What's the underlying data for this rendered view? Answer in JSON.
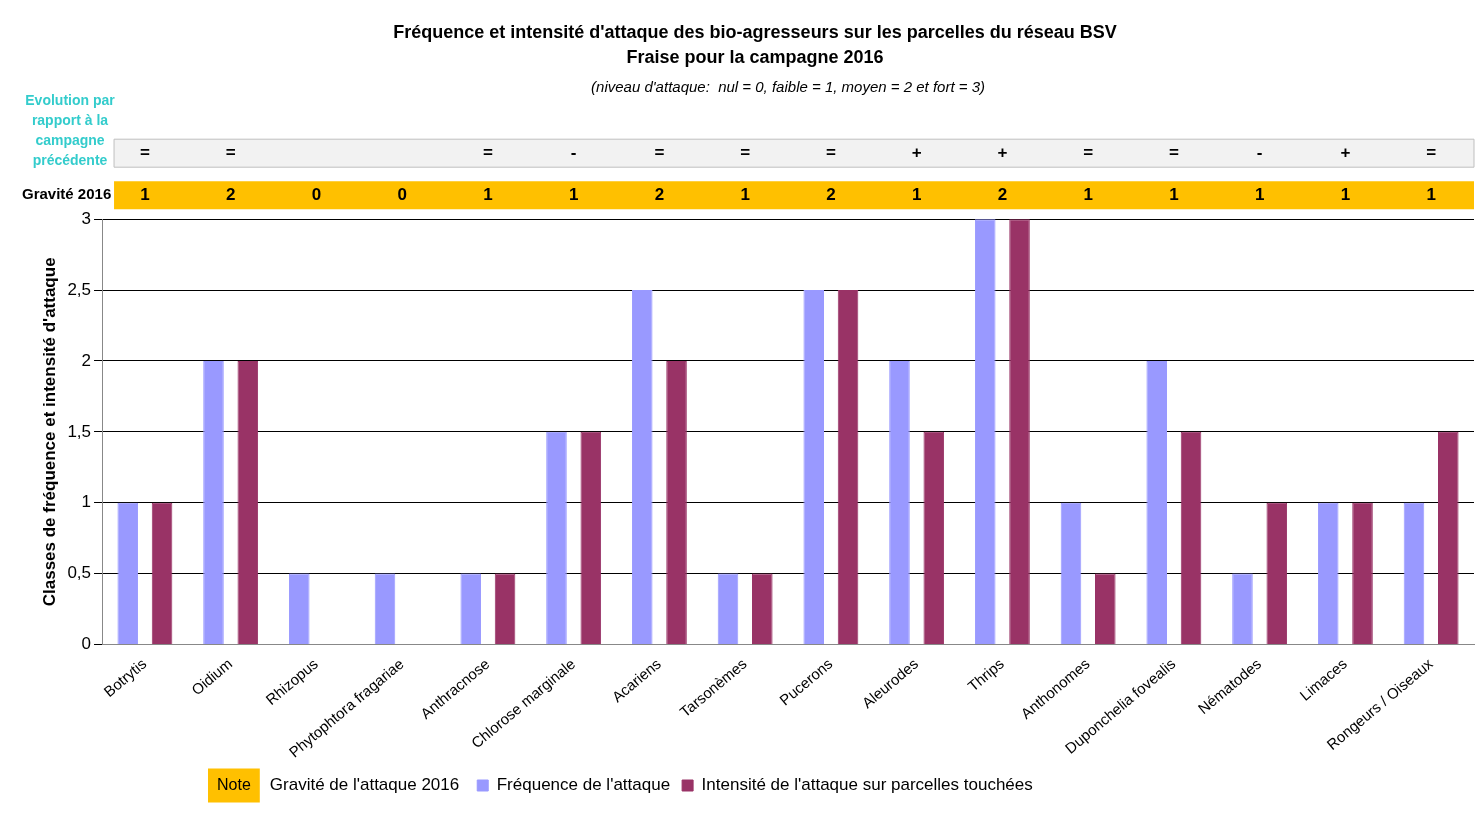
{
  "chart_data": {
    "type": "bar",
    "title": "Fréquence et intensité d'attaque des bio-agresseurs sur les parcelles du réseau BSV",
    "subtitle": "Fraise pour la campagne 2016",
    "ylabel": "Classes de fréquence et intensité d'attaque",
    "categories": [
      "Botrytis",
      "Oidium",
      "Rhizopus",
      "Phytophtora fragariae",
      "Anthracnose",
      "Chlorose marginale",
      "Acariens",
      "Tarsonèmes",
      "Pucerons",
      "Aleurodes",
      "Thrips",
      "Anthonomes",
      "Duponchelia fovealis",
      "Nématodes",
      "Limaces",
      "Rongeurs / Oiseaux"
    ],
    "series": [
      {
        "name": "Fréquence de l'attaque",
        "color": "#9999ff",
        "values": [
          1,
          2,
          0.5,
          0.5,
          0.5,
          1.5,
          2.5,
          0.5,
          2.5,
          2,
          3,
          1,
          2,
          0.5,
          1,
          1
        ]
      },
      {
        "name": "Intensité de l'attaque sur parcelles touchées",
        "color": "#993366",
        "values": [
          1,
          2,
          0,
          0,
          0.5,
          1.5,
          2,
          0.5,
          2.5,
          1.5,
          3,
          0.5,
          1.5,
          1,
          1,
          1.5
        ]
      }
    ],
    "ylim": [
      0,
      3
    ],
    "yticks": [
      0,
      {
        "value": 0.5,
        "label": "0,5"
      },
      1,
      {
        "value": 1.5,
        "label": "1,5"
      },
      2,
      {
        "value": 2.5,
        "label": "2,5"
      },
      3
    ],
    "grid": "y",
    "legend": "bottom",
    "annotations": [
      "(niveau d'attaque:  nul = 0, faible = 1, moyen = 2 et fort = 3)",
      "Evolution par rapport à la campagne précédente",
      "=",
      "=",
      null,
      null,
      "=",
      "-",
      "=",
      "=",
      "=",
      "+",
      "+",
      "=",
      "=",
      "-",
      "+",
      "=",
      "Gravité 2016",
      "1",
      "2",
      "0",
      "0",
      "1",
      "1",
      "2",
      "1",
      "2",
      "1",
      "2",
      "1",
      "1",
      "1",
      "1",
      "1",
      "Note",
      "Gravité de l'attaque 2016"
    ]
  }
}
